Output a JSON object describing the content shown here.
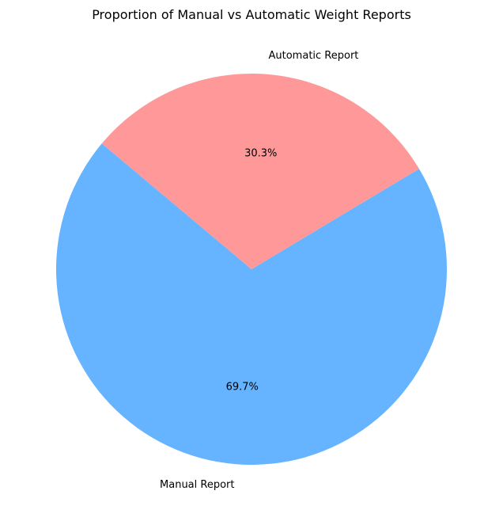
{
  "chart_data": {
    "type": "pie",
    "title": "Proportion of Manual vs Automatic Weight Reports",
    "slices": [
      {
        "label": "Manual Report",
        "percent": 69.7,
        "percent_label": "69.7%",
        "color": "#66b3ff"
      },
      {
        "label": "Automatic Report",
        "percent": 30.3,
        "percent_label": "30.3%",
        "color": "#ff9999"
      }
    ],
    "start_angle_deg": 140,
    "direction": "counterclockwise",
    "legend": "none"
  }
}
